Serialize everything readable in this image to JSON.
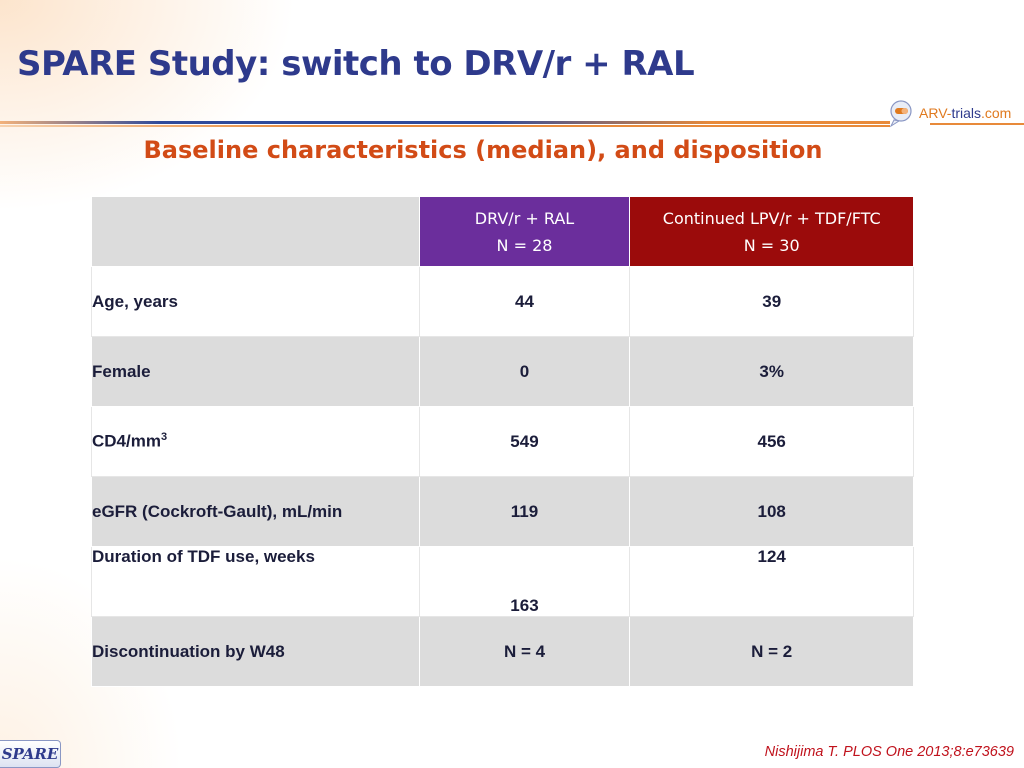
{
  "slide": {
    "title": "SPARE Study: switch to DRV/r + RAL",
    "subtitle": "Baseline characteristics (median), and disposition",
    "logo": {
      "part1": "ARV-",
      "part2": "trials",
      "part3": ".com"
    },
    "badge": "SPARE",
    "citation": "Nishijima T. PLOS One 2013;8:e73639"
  },
  "table": {
    "header_color_group1": "#6b2e9c",
    "header_color_group2": "#9b0b0b",
    "group1": {
      "line1": "DRV/r + RAL",
      "line2": "N = 28"
    },
    "group2": {
      "line1": "Continued LPV/r + TDF/FTC",
      "line2": "N = 30"
    },
    "rows": [
      {
        "label": "Age, years",
        "v1": "44",
        "v2": "39"
      },
      {
        "label": "Female",
        "v1": "0",
        "v2": "3%"
      },
      {
        "label": "CD4/mm",
        "label_sup": "3",
        "v1": "549",
        "v2": "456"
      },
      {
        "label": "eGFR (Cockroft-Gault), mL/min",
        "v1": "119",
        "v2": "108"
      },
      {
        "label": "Duration of TDF use, weeks",
        "v1": "163",
        "v2": "124"
      },
      {
        "label": "Discontinuation by W48",
        "v1": "N = 4",
        "v2": "N = 2"
      }
    ]
  }
}
